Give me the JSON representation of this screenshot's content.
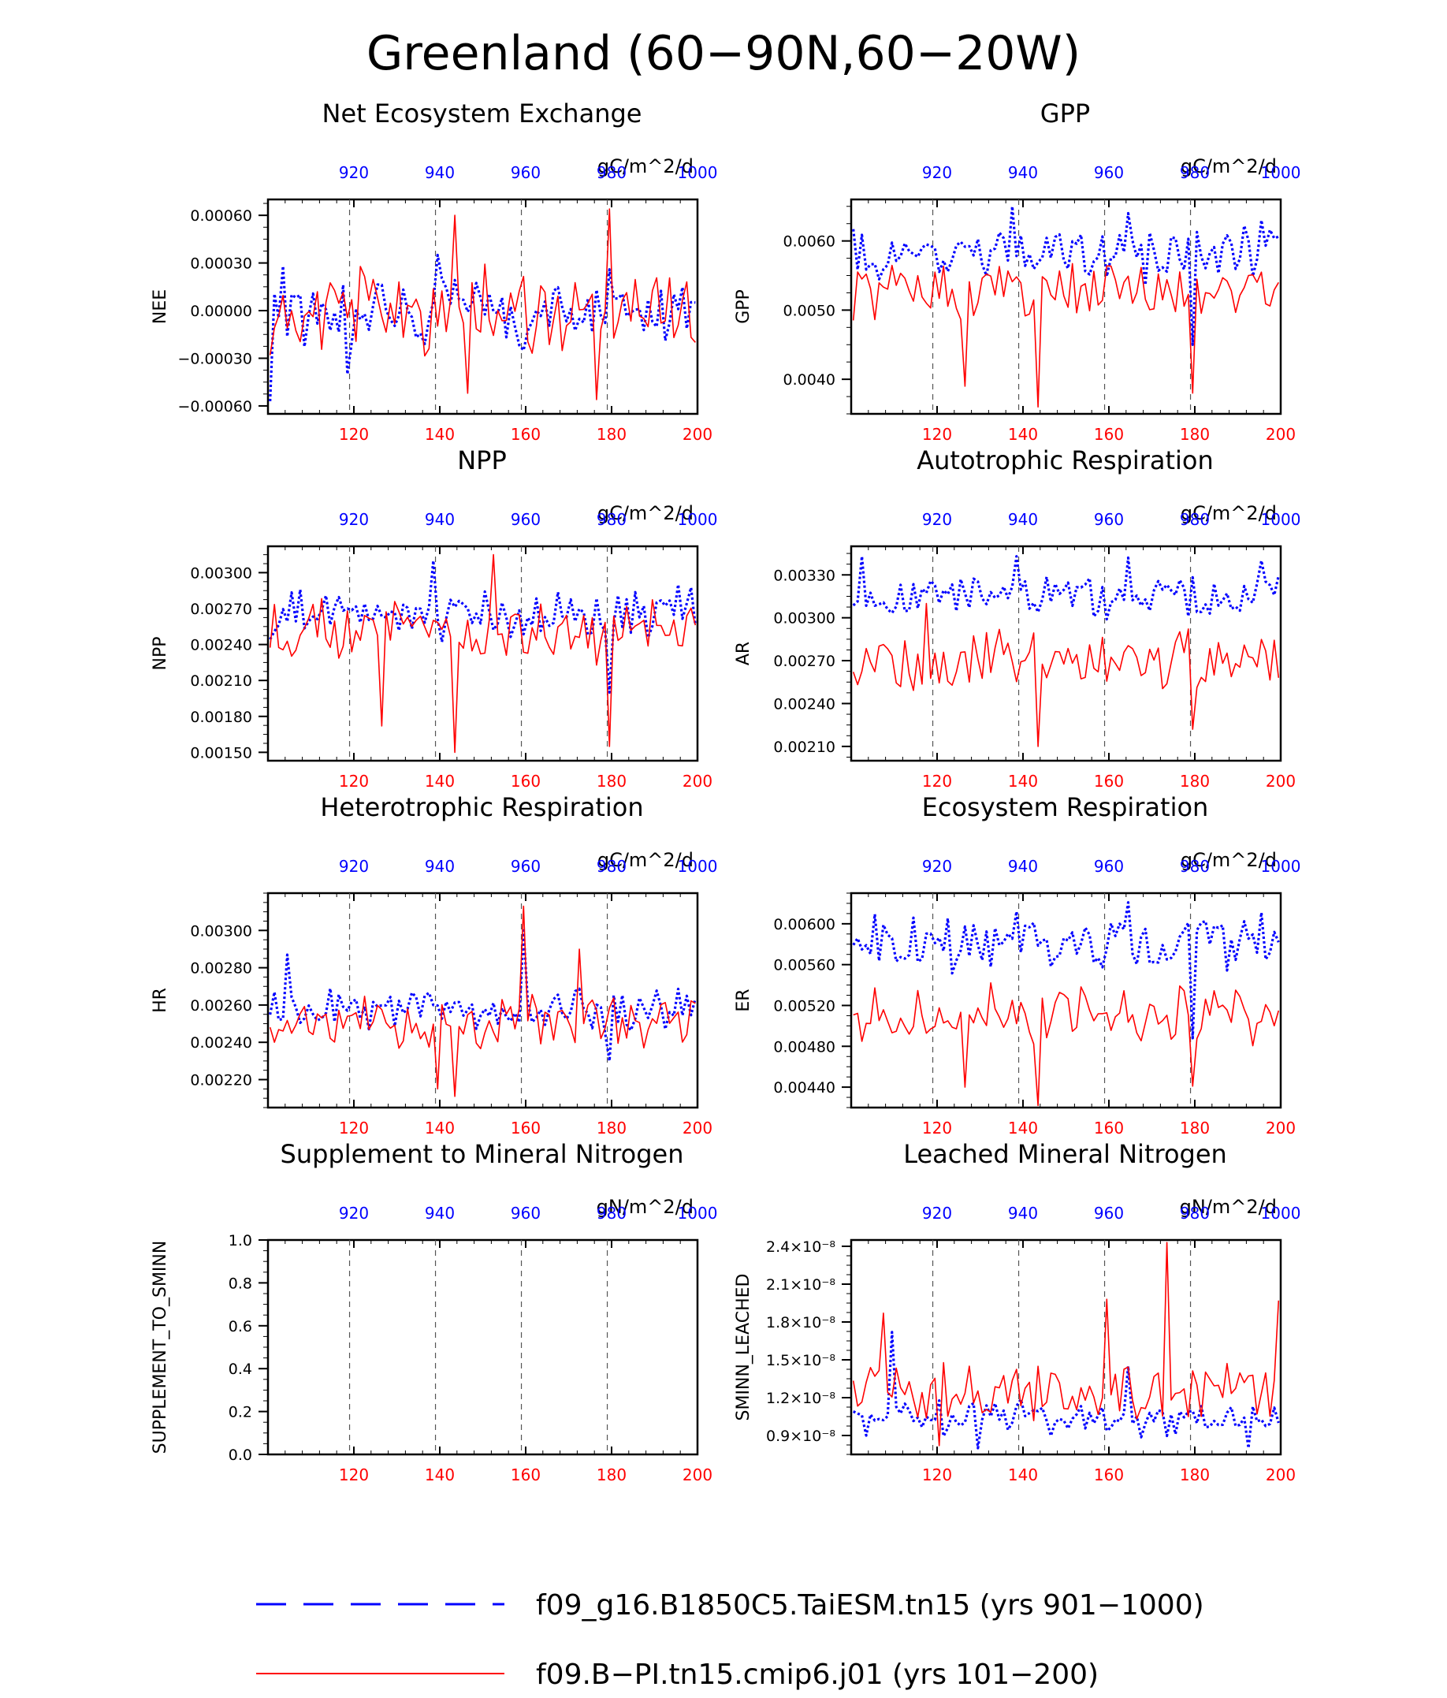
{
  "page": {
    "title": "Greenland (60−90N,60−20W)"
  },
  "legend": {
    "items": [
      {
        "label": "f09_g16.B1850C5.TaiESM.tn15 (yrs 901−1000)",
        "color": "#0000ff",
        "style": "dashed"
      },
      {
        "label": "f09.B−PI.tn15.cmip6.j01 (yrs 101−200)",
        "color": "#ff0000",
        "style": "solid"
      }
    ]
  },
  "colors": {
    "series_a": "#0000ff",
    "series_b": "#ff0000"
  },
  "chart_data": [
    {
      "type": "line",
      "title": "Net Ecosystem Exchange",
      "ylabel": "NEE",
      "units": "gC/m^2/d",
      "ylim": [
        -0.00065,
        0.0007
      ],
      "yticks": [
        "−0.00060",
        "−0.00030",
        "0.00000",
        "0.00030",
        "0.00060"
      ],
      "ytick_values": [
        -0.0006,
        -0.0003,
        0,
        0.0003,
        0.0006
      ],
      "bottom_axis": {
        "ticks": [
          "120",
          "140",
          "160",
          "180",
          "200"
        ],
        "range": [
          101,
          200
        ]
      },
      "top_axis": {
        "ticks": [
          "920",
          "940",
          "960",
          "980",
          "1000"
        ],
        "range": [
          901,
          1000
        ]
      },
      "series": [
        {
          "name": "f09_g16.B1850C5.TaiESM.tn15",
          "x_range": [
            901,
            1000
          ],
          "base": 0.0,
          "amp": 0.0002,
          "seed": 11,
          "spikes": [
            [
              0,
              -0.00057
            ],
            [
              3,
              0.00028
            ],
            [
              18,
              -0.0004
            ],
            [
              39,
              0.00035
            ],
            [
              59,
              -0.00025
            ],
            [
              79,
              0.00026
            ]
          ]
        },
        {
          "name": "f09.B-PI.tn15.cmip6.j01",
          "x_range": [
            101,
            200
          ],
          "base": 0.0,
          "amp": 0.00025,
          "seed": 23,
          "spikes": [
            [
              0,
              -0.00028
            ],
            [
              43,
              0.0006
            ],
            [
              46,
              -0.00052
            ],
            [
              76,
              -0.00056
            ],
            [
              79,
              0.00064
            ],
            [
              99,
              -0.0002
            ]
          ]
        }
      ]
    },
    {
      "type": "line",
      "title": "GPP",
      "ylabel": "GPP",
      "units": "gC/m^2/d",
      "ylim": [
        0.0035,
        0.0066
      ],
      "yticks": [
        "0.0040",
        "0.0050",
        "0.0060"
      ],
      "ytick_values": [
        0.004,
        0.005,
        0.006
      ],
      "bottom_axis": {
        "ticks": [
          "120",
          "140",
          "160",
          "180",
          "200"
        ],
        "range": [
          101,
          200
        ]
      },
      "top_axis": {
        "ticks": [
          "920",
          "940",
          "960",
          "980",
          "1000"
        ],
        "range": [
          901,
          1000
        ]
      },
      "series": [
        {
          "name": "f09_g16.B1850C5.TaiESM.tn15",
          "x_range": [
            901,
            1000
          ],
          "base": 0.0058,
          "amp": 0.0004,
          "seed": 31,
          "spikes": [
            [
              37,
              0.0065
            ],
            [
              64,
              0.0064
            ],
            [
              79,
              0.0045
            ],
            [
              95,
              0.0063
            ]
          ]
        },
        {
          "name": "f09.B-PI.tn15.cmip6.j01",
          "x_range": [
            101,
            200
          ],
          "base": 0.0053,
          "amp": 0.0004,
          "seed": 37,
          "spikes": [
            [
              26,
              0.0039
            ],
            [
              43,
              0.0036
            ],
            [
              79,
              0.0038
            ],
            [
              99,
              0.0054
            ]
          ]
        }
      ]
    },
    {
      "type": "line",
      "title": "NPP",
      "ylabel": "NPP",
      "units": "gC/m^2/d",
      "ylim": [
        0.00143,
        0.00322
      ],
      "yticks": [
        "0.00150",
        "0.00180",
        "0.00210",
        "0.00240",
        "0.00270",
        "0.00300"
      ],
      "ytick_values": [
        0.0015,
        0.0018,
        0.0021,
        0.0024,
        0.0027,
        0.003
      ],
      "bottom_axis": {
        "ticks": [
          "120",
          "140",
          "160",
          "180",
          "200"
        ],
        "range": [
          101,
          200
        ]
      },
      "top_axis": {
        "ticks": [
          "920",
          "940",
          "960",
          "980",
          "1000"
        ],
        "range": [
          901,
          1000
        ]
      },
      "series": [
        {
          "name": "f09_g16.B1850C5.TaiESM.tn15",
          "x_range": [
            901,
            1000
          ],
          "base": 0.00265,
          "amp": 0.0002,
          "seed": 41,
          "spikes": [
            [
              38,
              0.0031
            ],
            [
              79,
              0.002
            ],
            [
              95,
              0.0029
            ]
          ]
        },
        {
          "name": "f09.B-PI.tn15.cmip6.j01",
          "x_range": [
            101,
            200
          ],
          "base": 0.0025,
          "amp": 0.00025,
          "seed": 43,
          "spikes": [
            [
              26,
              0.00172
            ],
            [
              43,
              0.0015
            ],
            [
              52,
              0.00315
            ],
            [
              79,
              0.00155
            ]
          ]
        }
      ]
    },
    {
      "type": "line",
      "title": "Autotrophic Respiration",
      "ylabel": "AR",
      "units": "gC/m^2/d",
      "ylim": [
        0.002,
        0.0035
      ],
      "yticks": [
        "0.00210",
        "0.00240",
        "0.00270",
        "0.00300",
        "0.00330"
      ],
      "ytick_values": [
        0.0021,
        0.0024,
        0.0027,
        0.003,
        0.0033
      ],
      "bottom_axis": {
        "ticks": [
          "120",
          "140",
          "160",
          "180",
          "200"
        ],
        "range": [
          101,
          200
        ]
      },
      "top_axis": {
        "ticks": [
          "920",
          "940",
          "960",
          "980",
          "1000"
        ],
        "range": [
          901,
          1000
        ]
      },
      "series": [
        {
          "name": "f09_g16.B1850C5.TaiESM.tn15",
          "x_range": [
            901,
            1000
          ],
          "base": 0.00315,
          "amp": 0.00015,
          "seed": 51,
          "spikes": [
            [
              2,
              0.00343
            ],
            [
              38,
              0.00343
            ],
            [
              64,
              0.00342
            ],
            [
              95,
              0.0034
            ]
          ]
        },
        {
          "name": "f09.B-PI.tn15.cmip6.j01",
          "x_range": [
            101,
            200
          ],
          "base": 0.0027,
          "amp": 0.0002,
          "seed": 53,
          "spikes": [
            [
              17,
              0.0031
            ],
            [
              43,
              0.0021
            ],
            [
              79,
              0.00222
            ],
            [
              99,
              0.00258
            ]
          ]
        }
      ]
    },
    {
      "type": "line",
      "title": "Heterotrophic Respiration",
      "ylabel": "HR",
      "units": "gC/m^2/d",
      "ylim": [
        0.00205,
        0.0032
      ],
      "yticks": [
        "0.00220",
        "0.00240",
        "0.00260",
        "0.00280",
        "0.00300"
      ],
      "ytick_values": [
        0.0022,
        0.0024,
        0.0026,
        0.0028,
        0.003
      ],
      "bottom_axis": {
        "ticks": [
          "120",
          "140",
          "160",
          "180",
          "200"
        ],
        "range": [
          101,
          200
        ]
      },
      "top_axis": {
        "ticks": [
          "920",
          "940",
          "960",
          "980",
          "1000"
        ],
        "range": [
          901,
          1000
        ]
      },
      "series": [
        {
          "name": "f09_g16.B1850C5.TaiESM.tn15",
          "x_range": [
            901,
            1000
          ],
          "base": 0.00258,
          "amp": 0.00012,
          "seed": 61,
          "spikes": [
            [
              4,
              0.00287
            ],
            [
              59,
              0.003
            ],
            [
              79,
              0.0023
            ]
          ]
        },
        {
          "name": "f09.B-PI.tn15.cmip6.j01",
          "x_range": [
            101,
            200
          ],
          "base": 0.0025,
          "amp": 0.00015,
          "seed": 67,
          "spikes": [
            [
              39,
              0.00215
            ],
            [
              43,
              0.00211
            ],
            [
              59,
              0.00313
            ],
            [
              72,
              0.0029
            ]
          ]
        }
      ]
    },
    {
      "type": "line",
      "title": "Ecosystem Respiration",
      "ylabel": "ER",
      "units": "gC/m^2/d",
      "ylim": [
        0.0042,
        0.0063
      ],
      "yticks": [
        "0.00440",
        "0.00480",
        "0.00520",
        "0.00560",
        "0.00600"
      ],
      "ytick_values": [
        0.0044,
        0.0048,
        0.0052,
        0.0056,
        0.006
      ],
      "bottom_axis": {
        "ticks": [
          "120",
          "140",
          "160",
          "180",
          "200"
        ],
        "range": [
          101,
          200
        ]
      },
      "top_axis": {
        "ticks": [
          "920",
          "940",
          "960",
          "980",
          "1000"
        ],
        "range": [
          901,
          1000
        ]
      },
      "series": [
        {
          "name": "f09_g16.B1850C5.TaiESM.tn15",
          "x_range": [
            901,
            1000
          ],
          "base": 0.0058,
          "amp": 0.00025,
          "seed": 71,
          "spikes": [
            [
              38,
              0.00612
            ],
            [
              64,
              0.00621
            ],
            [
              79,
              0.00488
            ],
            [
              95,
              0.00611
            ]
          ]
        },
        {
          "name": "f09.B-PI.tn15.cmip6.j01",
          "x_range": [
            101,
            200
          ],
          "base": 0.0051,
          "amp": 0.0003,
          "seed": 73,
          "spikes": [
            [
              26,
              0.0044
            ],
            [
              43,
              0.00422
            ],
            [
              79,
              0.00441
            ],
            [
              99,
              0.00515
            ]
          ]
        }
      ]
    },
    {
      "type": "line",
      "title": "Supplement to Mineral Nitrogen",
      "ylabel": "SUPPLEMENT_TO_SMINN",
      "units": "gN/m^2/d",
      "ylim": [
        0.0,
        1.0
      ],
      "yticks": [
        "0.0",
        "0.2",
        "0.4",
        "0.6",
        "0.8",
        "1.0"
      ],
      "ytick_values": [
        0,
        0.2,
        0.4,
        0.6,
        0.8,
        1.0
      ],
      "bottom_axis": {
        "ticks": [
          "120",
          "140",
          "160",
          "180",
          "200"
        ],
        "range": [
          101,
          200
        ]
      },
      "top_axis": {
        "ticks": [
          "920",
          "940",
          "960",
          "980",
          "1000"
        ],
        "range": [
          901,
          1000
        ]
      },
      "series": []
    },
    {
      "type": "line",
      "title": "Leached Mineral Nitrogen",
      "ylabel": "SMINN_LEACHED",
      "units": "gN/m^2/d",
      "ylim": [
        7.5e-09,
        2.45e-08
      ],
      "yticks": [
        "0.9×10⁻⁸",
        "1.2×10⁻⁸",
        "1.5×10⁻⁸",
        "1.8×10⁻⁸",
        "2.1×10⁻⁸",
        "2.4×10⁻⁸"
      ],
      "ytick_values": [
        9e-09,
        1.2e-08,
        1.5e-08,
        1.8e-08,
        2.1e-08,
        2.4e-08
      ],
      "bottom_axis": {
        "ticks": [
          "120",
          "140",
          "160",
          "180",
          "200"
        ],
        "range": [
          101,
          200
        ]
      },
      "top_axis": {
        "ticks": [
          "920",
          "940",
          "960",
          "980",
          "1000"
        ],
        "range": [
          901,
          1000
        ]
      },
      "series": [
        {
          "name": "f09_g16.B1850C5.TaiESM.tn15",
          "x_range": [
            901,
            1000
          ],
          "base": 1.05e-08,
          "amp": 1.5e-09,
          "seed": 81,
          "spikes": [
            [
              3,
              9e-09
            ],
            [
              9,
              1.72e-08
            ],
            [
              29,
              8e-09
            ],
            [
              64,
              1.45e-08
            ],
            [
              92,
              8e-09
            ],
            [
              99,
              1e-08
            ]
          ]
        },
        {
          "name": "f09.B-PI.tn15.cmip6.j01",
          "x_range": [
            101,
            200
          ],
          "base": 1.25e-08,
          "amp": 2.5e-09,
          "seed": 83,
          "spikes": [
            [
              7,
              1.87e-08
            ],
            [
              20,
              8.2e-09
            ],
            [
              59,
              1.98e-08
            ],
            [
              73,
              2.43e-08
            ],
            [
              99,
              1.97e-08
            ]
          ]
        }
      ]
    }
  ]
}
